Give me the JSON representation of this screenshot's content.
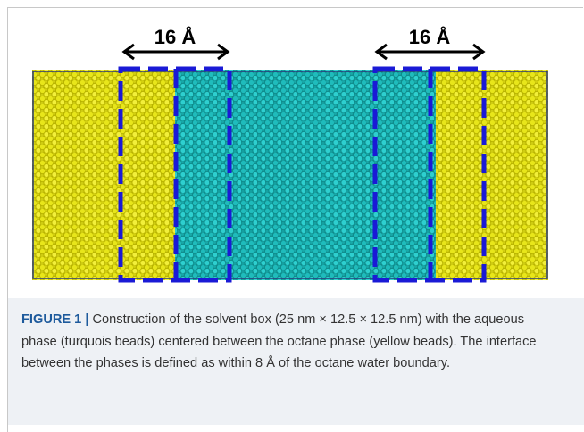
{
  "figure": {
    "labels": [
      "16 Å",
      "16 Å"
    ]
  },
  "caption": {
    "label": "FIGURE 1 |",
    "text": "Construction of the solvent box (25 nm × 12.5 × 12.5 nm) with the aqueous phase (turquois beads) centered between the octane phase (yellow beads). The interface between the phases is defined as within 8 Å of the octane water boundary."
  }
}
